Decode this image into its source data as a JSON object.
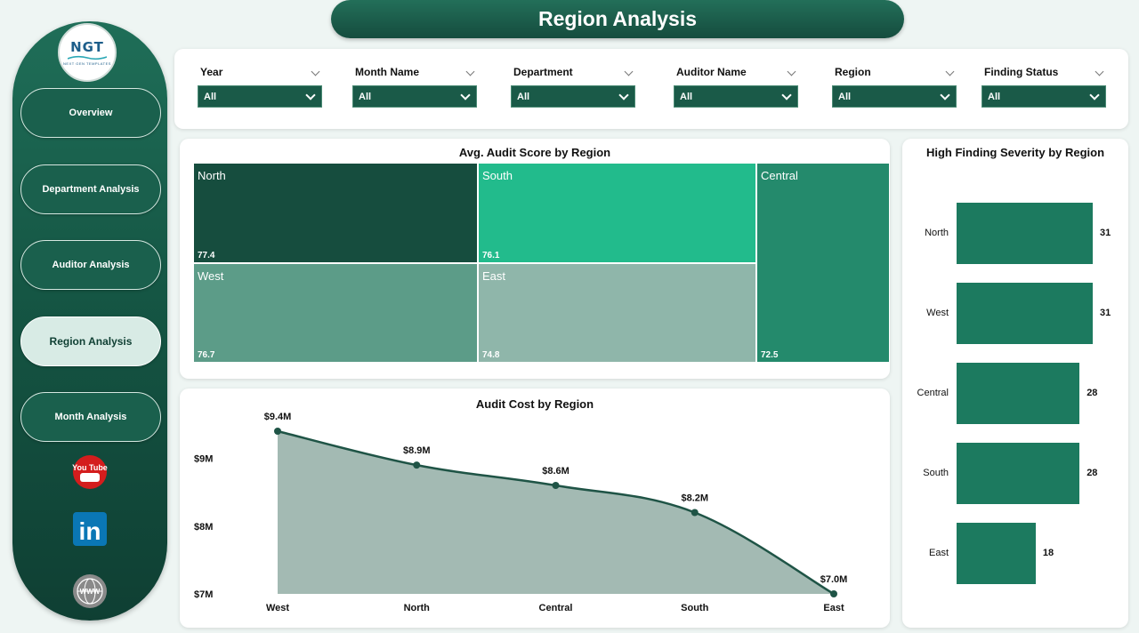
{
  "title": "Region Analysis",
  "logo": {
    "main": "NGT",
    "sub": "NEXT GEN TEMPLATES"
  },
  "sidebar": {
    "items": [
      {
        "label": "Overview",
        "active": false
      },
      {
        "label": "Department Analysis",
        "active": false
      },
      {
        "label": "Auditor Analysis",
        "active": false
      },
      {
        "label": "Region Analysis",
        "active": true
      },
      {
        "label": "Month Analysis",
        "active": false
      }
    ],
    "social_icons": [
      "youtube-icon",
      "linkedin-icon",
      "web-globe-icon"
    ],
    "youtube_text": "You Tube",
    "linkedin_text": "in",
    "web_text": "WWW"
  },
  "filters": [
    {
      "label": "Year",
      "value": "All"
    },
    {
      "label": "Month Name",
      "value": "All"
    },
    {
      "label": "Department",
      "value": "All"
    },
    {
      "label": "Auditor Name",
      "value": "All"
    },
    {
      "label": "Region",
      "value": "All"
    },
    {
      "label": "Finding Status",
      "value": "All"
    }
  ],
  "colors": {
    "accent": "#1c7a5f",
    "dark": "#154c3e",
    "area_fill": "#a3bab3",
    "line": "#1f5446"
  },
  "treemap": {
    "title": "Avg. Audit Score by Region",
    "tiles": [
      {
        "name": "North",
        "value": "77.4",
        "color": "#164d3e"
      },
      {
        "name": "South",
        "value": "76.1",
        "color": "#22bb8c"
      },
      {
        "name": "Central",
        "value": "72.5",
        "color": "#248a6c"
      },
      {
        "name": "West",
        "value": "76.7",
        "color": "#5c9c88"
      },
      {
        "name": "East",
        "value": "74.8",
        "color": "#8fb6aa"
      }
    ]
  },
  "severity": {
    "title": "High Finding Severity by Region",
    "categories": [
      "North",
      "West",
      "Central",
      "South",
      "East"
    ],
    "values": [
      31,
      31,
      28,
      28,
      18
    ]
  },
  "chart_data": {
    "type": "area",
    "title": "Audit Cost by Region",
    "categories": [
      "West",
      "North",
      "Central",
      "South",
      "East"
    ],
    "values": [
      9.4,
      8.9,
      8.6,
      8.2,
      7.0
    ],
    "data_labels": [
      "$9.4M",
      "$8.9M",
      "$8.6M",
      "$8.2M",
      "$7.0M"
    ],
    "y_ticks": [
      {
        "value": 9,
        "label": "$9M"
      },
      {
        "value": 8,
        "label": "$8M"
      },
      {
        "value": 7,
        "label": "$7M"
      }
    ],
    "ylim": [
      7,
      9.4
    ],
    "grid": false
  }
}
